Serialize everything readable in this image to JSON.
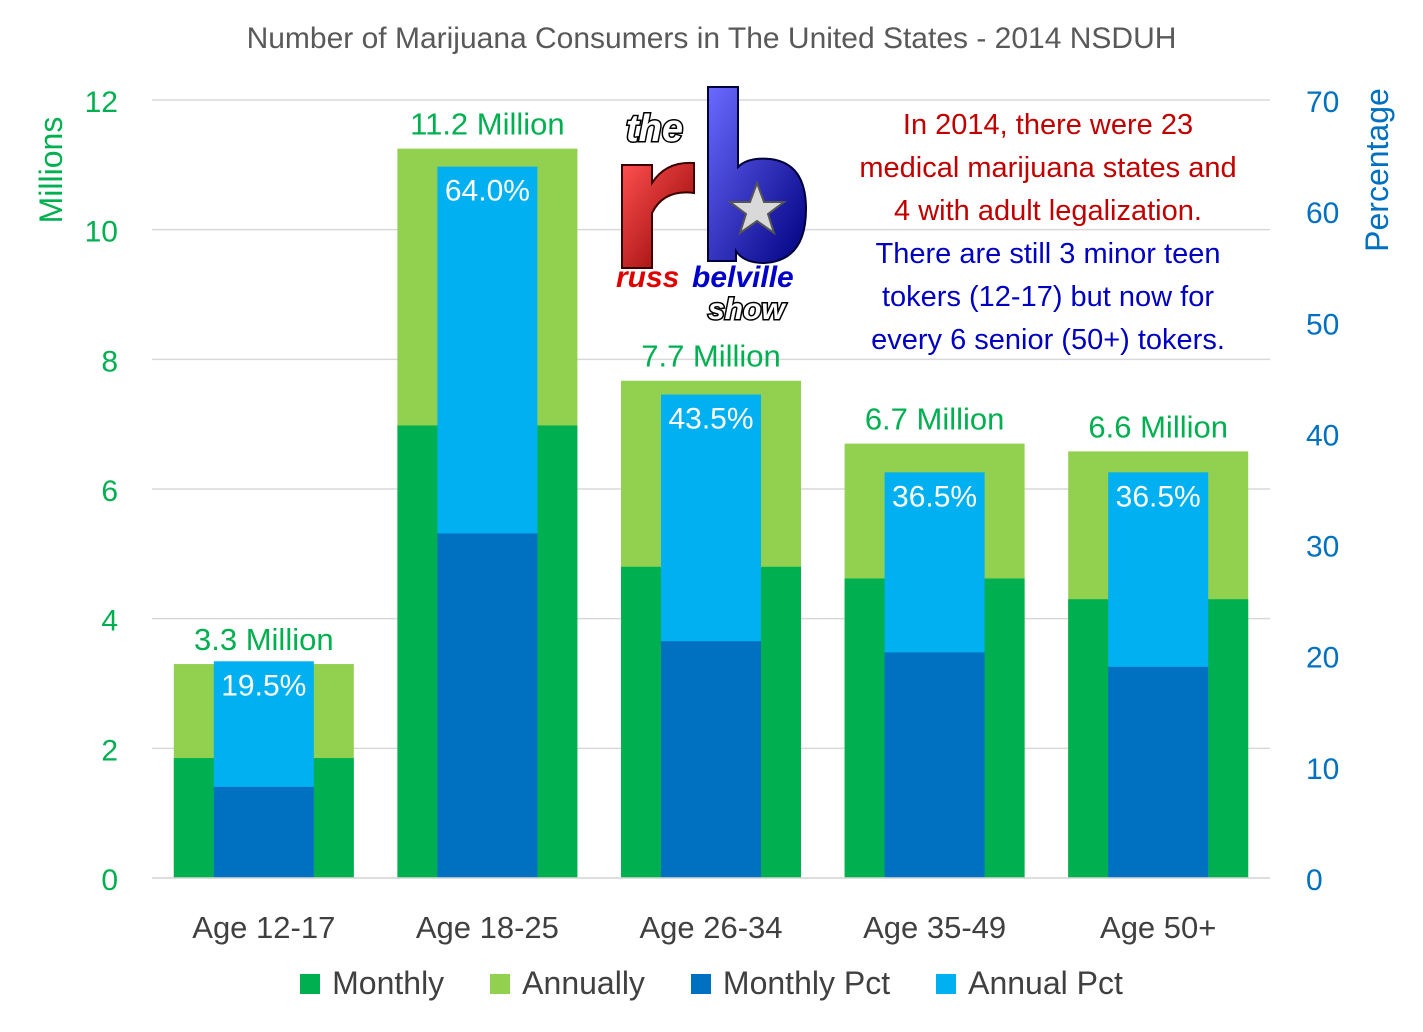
{
  "chart_data": {
    "type": "bar",
    "title": "Number of Marijuana Consumers in The United States - 2014 NSDUH",
    "categories": [
      "Age 12-17",
      "Age 18-25",
      "Age 26-34",
      "Age 35-49",
      "Age 50+"
    ],
    "left_axis": {
      "label": "Millions",
      "range": [
        0,
        12
      ],
      "ticks": [
        "0",
        "2",
        "4",
        "6",
        "8",
        "10",
        "12"
      ]
    },
    "right_axis": {
      "label": "Percentage",
      "range": [
        0,
        70
      ],
      "ticks": [
        "0",
        "10",
        "20",
        "30",
        "40",
        "50",
        "60",
        "70"
      ]
    },
    "series": [
      {
        "name": "Monthly",
        "axis": "left",
        "values": [
          1.85,
          6.98,
          4.8,
          4.62,
          4.3
        ],
        "color": "#00b050"
      },
      {
        "name": "Annually",
        "axis": "left",
        "values": [
          3.3,
          11.25,
          7.67,
          6.7,
          6.58
        ],
        "color": "#92d050"
      },
      {
        "name": "Monthly Pct",
        "axis": "right",
        "values": [
          8.2,
          31.0,
          21.3,
          20.3,
          19.0
        ],
        "color": "#0070c0"
      },
      {
        "name": "Annual Pct",
        "axis": "right",
        "values": [
          19.5,
          64.0,
          43.5,
          36.5,
          36.5
        ],
        "color": "#00b0f0"
      }
    ],
    "total_labels": [
      "3.3 Million",
      "11.2 Million",
      "7.7 Million",
      "6.7 Million",
      "6.6 Million"
    ],
    "pct_labels": [
      "19.5%",
      "64.0%",
      "43.5%",
      "36.5%",
      "36.5%"
    ],
    "colors": {
      "left_axis": "#00b050",
      "right_axis": "#0070c0",
      "total_label": "#00b050",
      "pct_label": "#ffffff",
      "grid": "#d9d9d9"
    },
    "grid": true,
    "legend_position": "bottom"
  },
  "annotation": {
    "red_lines": [
      "In 2014, there were 23",
      "medical marijuana states and",
      "4 with adult legalization."
    ],
    "blue_lines": [
      "There are still 3 minor teen",
      "tokers (12-17) but now for",
      "every 6 senior (50+) tokers."
    ]
  },
  "logo": {
    "top": "the",
    "bottom_left": "russ",
    "bottom_right": "belville",
    "bottom_last": "show"
  }
}
